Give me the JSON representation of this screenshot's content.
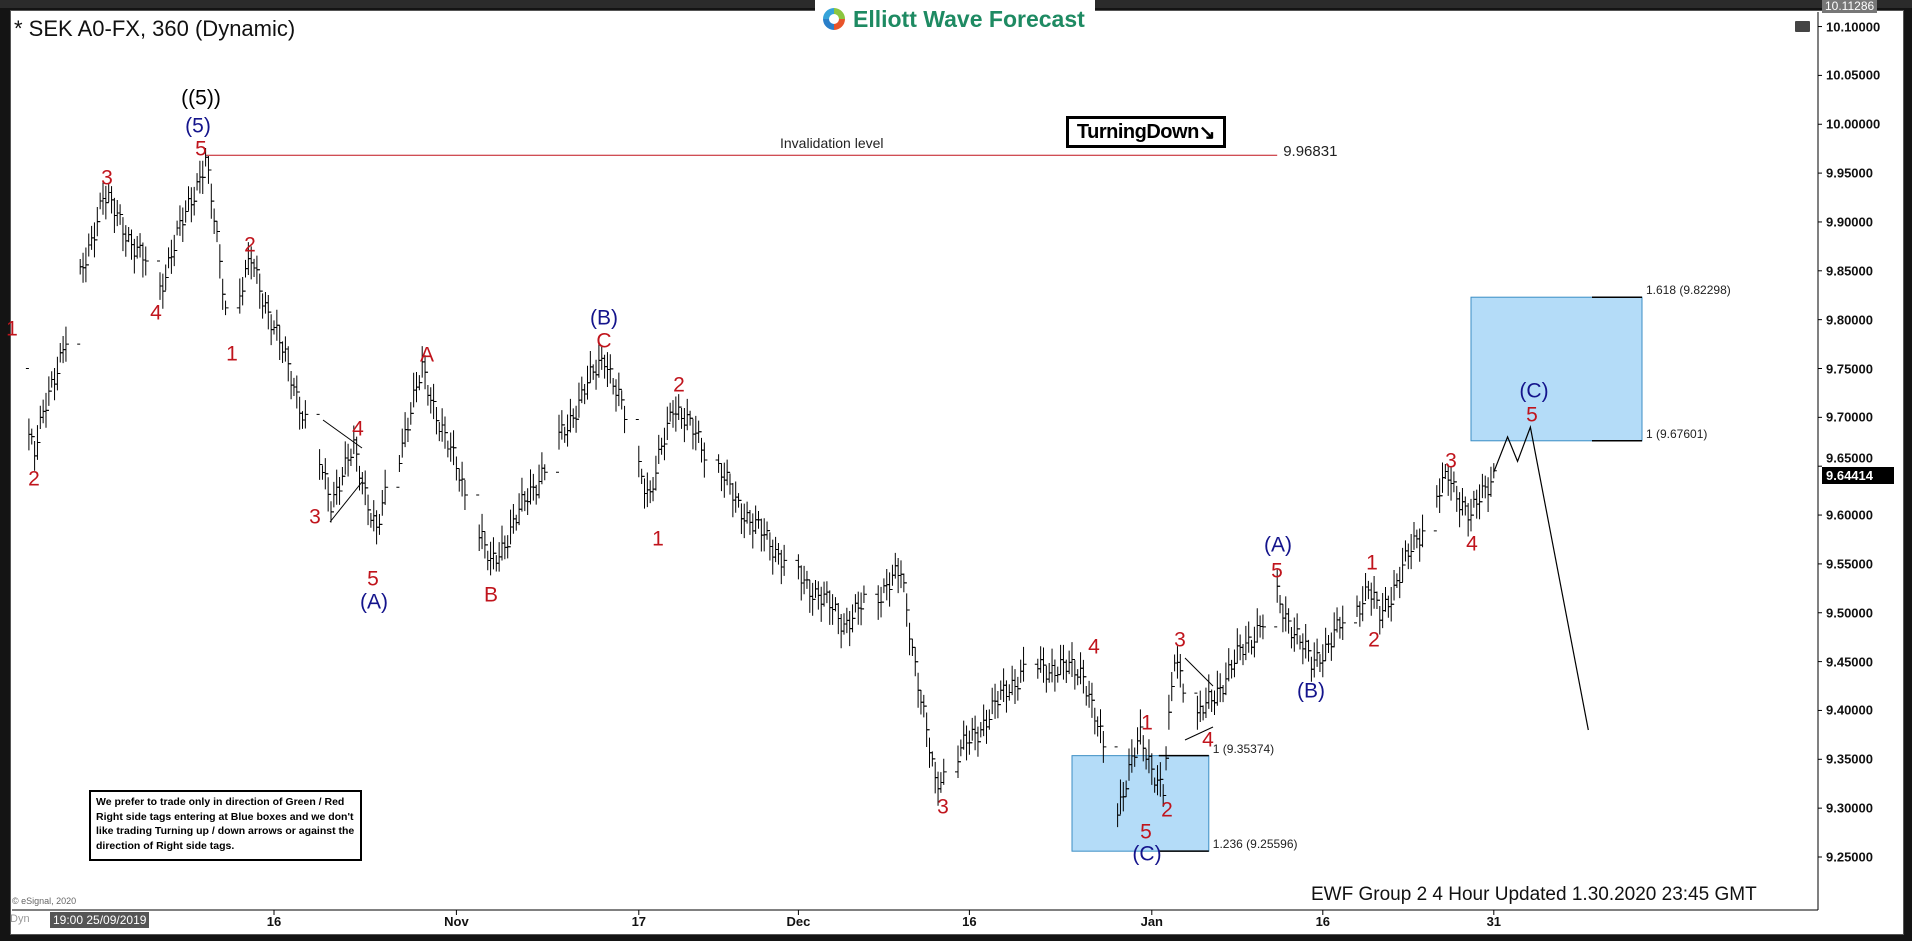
{
  "header": {
    "title": "* SEK A0-FX, 360 (Dynamic)",
    "logo_text": "Elliott Wave Forecast",
    "turning_label": "TurningDown",
    "turning_arrow": "↘"
  },
  "disclaimer": "We prefer to trade only in direction of Green / Red Right side tags entering at Blue boxes and we don't like trading Turning up / down arrows or against the direction of Right side tags.",
  "footer": {
    "copyright": "© eSignal, 2020",
    "updated": "EWF Group 2 4 Hour Updated 1.30.2020 23:45 GMT",
    "dyn_label": "Dyn",
    "start_tag": "19:00 25/09/2019"
  },
  "colors": {
    "wave_red": "#c0141c",
    "wave_blue": "#14148c",
    "box_fill": "#b4dcf8",
    "box_border": "#3b8ec4",
    "invalidation": "#c0141c"
  },
  "chart_data": {
    "type": "ohlc",
    "symbol": "SEK A0-FX",
    "interval": "360",
    "ylim": [
      9.23,
      10.115
    ],
    "y_ticks": [
      "9.25000",
      "9.30000",
      "9.35000",
      "9.40000",
      "9.45000",
      "9.50000",
      "9.55000",
      "9.60000",
      "9.65000",
      "9.70000",
      "9.75000",
      "9.80000",
      "9.85000",
      "9.90000",
      "9.95000",
      "10.00000",
      "10.05000",
      "10.10000"
    ],
    "x_ticks": [
      {
        "label": "16",
        "date": "2019-10-16"
      },
      {
        "label": "Nov",
        "date": "2019-11-01"
      },
      {
        "label": "17",
        "date": "2019-11-17"
      },
      {
        "label": "Dec",
        "date": "2019-12-01"
      },
      {
        "label": "16",
        "date": "2019-12-16"
      },
      {
        "label": "Jan",
        "date": "2020-01-01"
      },
      {
        "label": "16",
        "date": "2020-01-16"
      },
      {
        "label": "31",
        "date": "2020-01-31"
      }
    ],
    "price_high_tag": "10.11286",
    "last_price": "9.64414",
    "price_path": [
      [
        "2019-09-23",
        9.75
      ],
      [
        "2019-09-25",
        9.666
      ],
      [
        "2019-10-01",
        9.928
      ],
      [
        "2019-10-06",
        9.834
      ],
      [
        "2019-10-10",
        9.965
      ],
      [
        "2019-10-12",
        9.79
      ],
      [
        "2019-10-14",
        9.86
      ],
      [
        "2019-10-19",
        9.69
      ],
      [
        "2019-10-21",
        9.616
      ],
      [
        "2019-10-23",
        9.666
      ],
      [
        "2019-10-25",
        9.585
      ],
      [
        "2019-10-29",
        9.747
      ],
      [
        "2019-11-04",
        9.547
      ],
      [
        "2019-11-14",
        9.765
      ],
      [
        "2019-11-18",
        9.616
      ],
      [
        "2019-11-20",
        9.716
      ],
      [
        "2019-11-27",
        9.59
      ],
      [
        "2019-12-05",
        9.49
      ],
      [
        "2019-12-10",
        9.54
      ],
      [
        "2019-12-13",
        9.322
      ],
      [
        "2019-12-21",
        9.447
      ],
      [
        "2019-12-26",
        9.44
      ],
      [
        "2019-12-29",
        9.3
      ],
      [
        "2019-12-31",
        9.372
      ],
      [
        "2020-01-02",
        9.316
      ],
      [
        "2020-01-03",
        9.453
      ],
      [
        "2020-01-05",
        9.39
      ],
      [
        "2020-01-12",
        9.516
      ],
      [
        "2020-01-15",
        9.447
      ],
      [
        "2020-01-20",
        9.522
      ],
      [
        "2020-01-21",
        9.497
      ],
      [
        "2020-01-27",
        9.64
      ],
      [
        "2020-01-29",
        9.597
      ],
      [
        "2020-01-31",
        9.644
      ]
    ],
    "projection": [
      [
        "2020-01-31",
        9.644
      ],
      [
        "2020-02-01T05:00",
        9.68
      ],
      [
        "2020-02-02T02:00",
        9.655
      ],
      [
        "2020-02-03T05:00",
        9.69
      ],
      [
        "2020-02-08T07:00",
        9.38
      ]
    ],
    "invalidation": {
      "label": "Invalidation level",
      "value": 9.96831,
      "value_text": "9.96831",
      "from": "2019-10-10",
      "to": "2020-01-12"
    },
    "blue_boxes": [
      {
        "from": "2019-12-25",
        "to": "2020-01-06",
        "low": 9.25596,
        "high": 9.35374,
        "low_label": "1.236 (9.25596)",
        "high_label": "1 (9.35374)"
      },
      {
        "from": "2020-01-29",
        "to": "2020-02-13",
        "low": 9.67601,
        "high": 9.82298,
        "low_label": "1 (9.67601)",
        "high_label": "1.618 (9.82298)"
      }
    ],
    "wave_labels": [
      {
        "t": "1",
        "c": "red"
      },
      {
        "t": "2",
        "c": "red"
      },
      {
        "t": "3",
        "c": "red"
      },
      {
        "t": "4",
        "c": "red"
      },
      {
        "t": "((5))",
        "c": "black"
      },
      {
        "t": "(5)",
        "c": "blue"
      },
      {
        "t": "5",
        "c": "red"
      },
      {
        "t": "1",
        "c": "red"
      },
      {
        "t": "2",
        "c": "red"
      },
      {
        "t": "4",
        "c": "red"
      },
      {
        "t": "3",
        "c": "red"
      },
      {
        "t": "5",
        "c": "red"
      },
      {
        "t": "(A)",
        "c": "blue"
      },
      {
        "t": "A",
        "c": "red"
      },
      {
        "t": "B",
        "c": "red"
      },
      {
        "t": "(B)",
        "c": "blue"
      },
      {
        "t": "C",
        "c": "red"
      },
      {
        "t": "2",
        "c": "red"
      },
      {
        "t": "1",
        "c": "red"
      },
      {
        "t": "3",
        "c": "red"
      },
      {
        "t": "4",
        "c": "red"
      },
      {
        "t": "1",
        "c": "red"
      },
      {
        "t": "2",
        "c": "red"
      },
      {
        "t": "5",
        "c": "red"
      },
      {
        "t": "(C)",
        "c": "blue"
      },
      {
        "t": "3",
        "c": "red"
      },
      {
        "t": "4",
        "c": "red"
      },
      {
        "t": "(A)",
        "c": "blue"
      },
      {
        "t": "5",
        "c": "red"
      },
      {
        "t": "(B)",
        "c": "blue"
      },
      {
        "t": "1",
        "c": "red"
      },
      {
        "t": "2",
        "c": "red"
      },
      {
        "t": "3",
        "c": "red"
      },
      {
        "t": "4",
        "c": "red"
      },
      {
        "t": "(C)",
        "c": "blue"
      },
      {
        "t": "5",
        "c": "red"
      }
    ]
  }
}
